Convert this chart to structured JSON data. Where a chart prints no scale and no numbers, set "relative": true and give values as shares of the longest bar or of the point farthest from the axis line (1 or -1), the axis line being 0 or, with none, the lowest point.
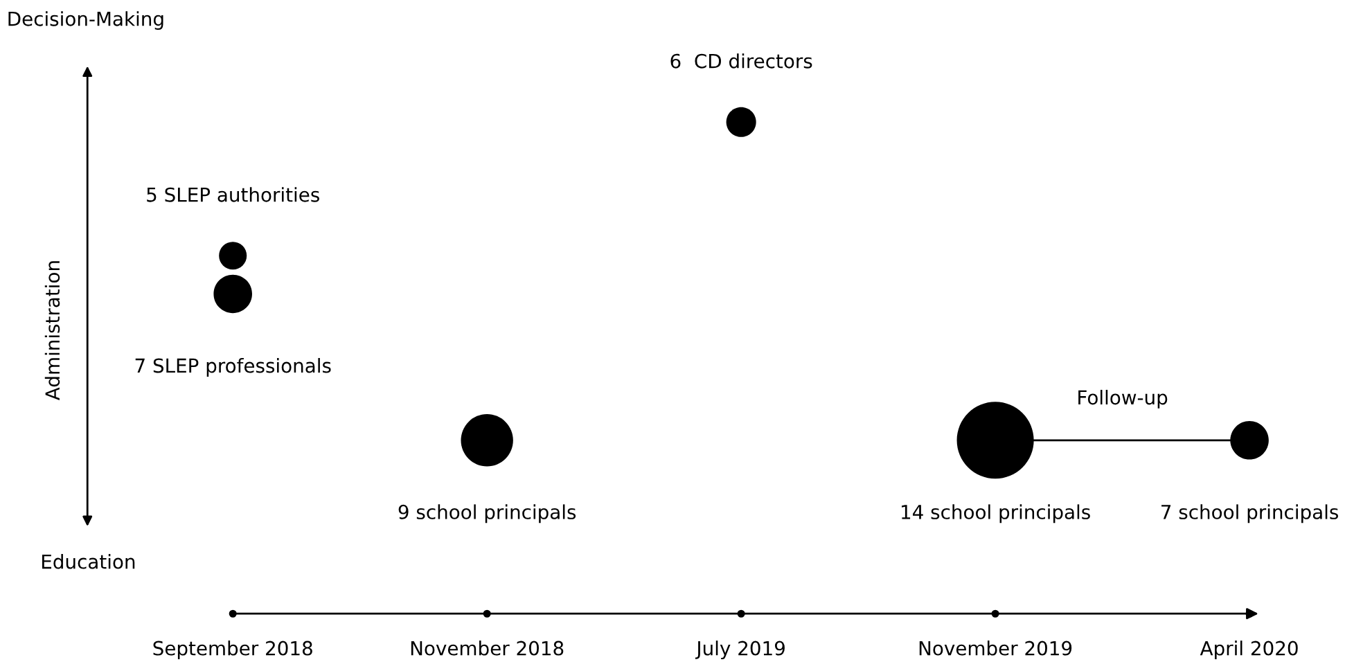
{
  "chart_data": {
    "type": "bubble",
    "relative": true,
    "ylabel": "Administration",
    "categories": [
      "September 2018",
      "November 2018",
      "July 2019",
      "November 2019",
      "April 2020"
    ],
    "series": [
      {
        "type": "line",
        "color": "#000000",
        "values": [
          null,
          null,
          null,
          0,
          0
        ]
      },
      {
        "type": "bubble",
        "color": "#000000",
        "values": [
          0.58,
          0,
          1,
          0,
          0
        ],
        "sizes": [
          0.13,
          0.46,
          0.15,
          1,
          0.25
        ]
      },
      {
        "type": "bubble",
        "color": "#000000",
        "values": [
          0.46,
          null,
          null,
          null,
          null
        ],
        "sizes": [
          0.25,
          null,
          null,
          null,
          null
        ]
      }
    ],
    "annotations": [
      "Decision-Making",
      "Education",
      "Follow-up",
      "7 SLEP professionals",
      "9 school principals",
      "14 school principals",
      "7 school principals",
      {
        "text": "5 SLEP authorities",
        "x": "September 2018",
        "y": 0.58
      },
      {
        "text": "6  CD directors",
        "x": "July 2019",
        "y": 1
      }
    ],
    "grid": false,
    "legend": false
  }
}
